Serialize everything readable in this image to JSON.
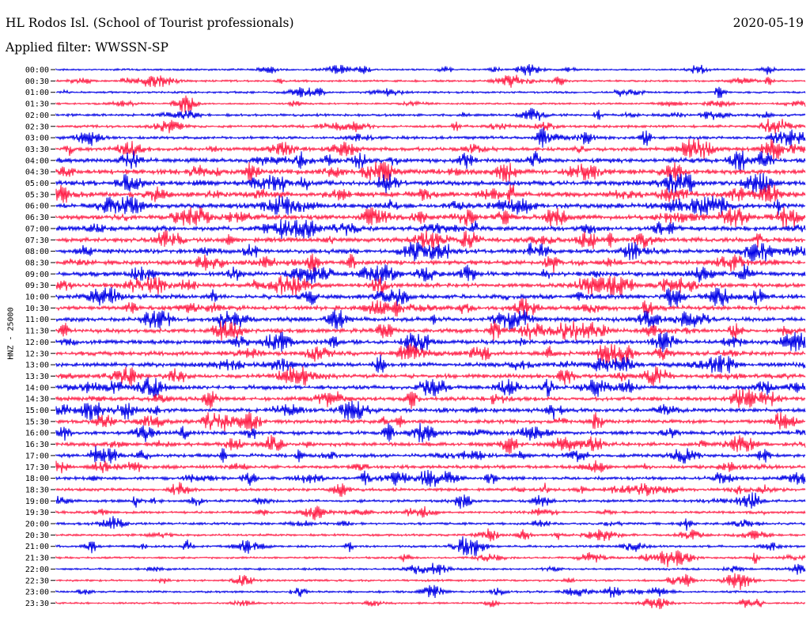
{
  "header": {
    "station": "HL Rodos Isl. (School of Tourist professionals)",
    "date": "2020-05-19",
    "filter": "Applied filter: WWSSN-SP"
  },
  "colors": {
    "odd_row": "#0000e6",
    "even_row": "#ff1f47"
  },
  "chart_data": {
    "type": "line",
    "title": "HL Rodos Isl. (School of Tourist professionals)",
    "subtitle": "Applied filter: WWSSN-SP",
    "ylabel": "HNZ - 25000",
    "xlabel": "",
    "grid": false,
    "row_interval_minutes": 30,
    "series": [
      {
        "name": "",
        "values": []
      }
    ],
    "tick_labels": [
      "00:00",
      "00:30",
      "01:00",
      "01:30",
      "02:00",
      "02:30",
      "03:00",
      "03:30",
      "04:00",
      "04:30",
      "05:00",
      "05:30",
      "06:00",
      "06:30",
      "07:00",
      "07:30",
      "08:00",
      "08:30",
      "09:00",
      "09:30",
      "10:00",
      "10:30",
      "11:00",
      "11:30",
      "12:00",
      "12:30",
      "13:00",
      "13:30",
      "14:00",
      "14:30",
      "15:00",
      "15:30",
      "16:00",
      "16:30",
      "17:00",
      "17:30",
      "18:00",
      "18:30",
      "19:00",
      "19:30",
      "20:00",
      "20:30",
      "21:00",
      "21:30",
      "22:00",
      "22:30",
      "23:00",
      "23:30"
    ],
    "row_activity": [
      0.25,
      0.3,
      0.3,
      0.25,
      0.4,
      0.45,
      0.5,
      0.7,
      0.9,
      1.0,
      1.0,
      1.0,
      1.0,
      0.95,
      0.95,
      0.9,
      0.9,
      0.9,
      0.85,
      0.85,
      0.85,
      0.85,
      0.85,
      0.85,
      0.85,
      0.8,
      0.8,
      0.75,
      0.75,
      0.75,
      0.75,
      0.75,
      0.7,
      0.7,
      0.65,
      0.6,
      0.55,
      0.5,
      0.45,
      0.4,
      0.4,
      0.35,
      0.35,
      0.3,
      0.3,
      0.3,
      0.3,
      0.25
    ]
  }
}
